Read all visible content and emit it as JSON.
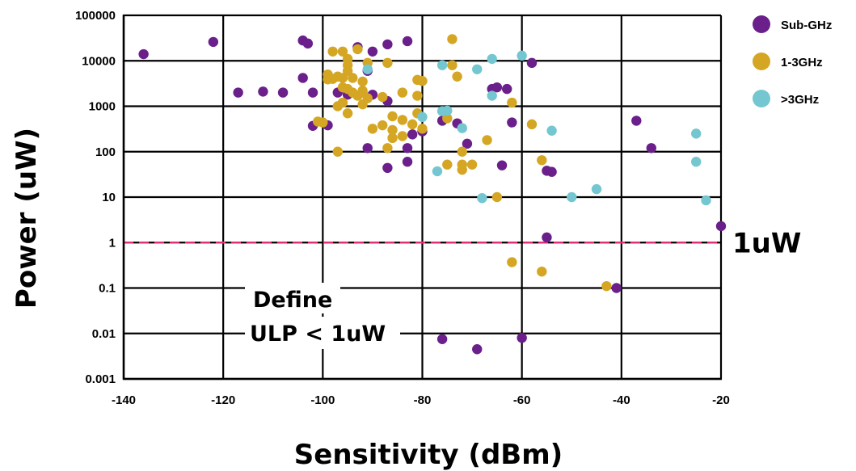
{
  "chart_data": {
    "type": "scatter",
    "title": "",
    "xlabel": "Sensitivity (dBm)",
    "ylabel": "Power (uW)",
    "xlim": [
      -140,
      -20
    ],
    "ylim": [
      0.001,
      100000
    ],
    "yscale": "log",
    "grid": true,
    "legend_position": "top-right",
    "x_ticks": [
      -140,
      -120,
      -100,
      -80,
      -60,
      -40,
      -20
    ],
    "x_tick_labels": [
      "-140",
      "-120",
      "-100",
      "-80",
      "-60",
      "-40",
      "-20"
    ],
    "y_ticks": [
      0.001,
      0.01,
      0.1,
      1,
      10,
      100,
      1000,
      10000,
      100000
    ],
    "y_tick_labels": [
      "0.001",
      "0.01",
      "0.1",
      "1",
      "10",
      "100",
      "1000",
      "10000",
      "100000"
    ],
    "reference_line": {
      "y": 1,
      "label": "1uW",
      "color": "#e0307a"
    },
    "annotation": {
      "lines": [
        "Define",
        "ULP < 1uW"
      ]
    },
    "series": [
      {
        "name": "Sub-GHz",
        "color": "#6a1f8a",
        "points": [
          [
            -136,
            14000
          ],
          [
            -122,
            26000
          ],
          [
            -117,
            2000
          ],
          [
            -112,
            2100
          ],
          [
            -108,
            2000
          ],
          [
            -104,
            28000
          ],
          [
            -103,
            24000
          ],
          [
            -104,
            4200
          ],
          [
            -102,
            2000
          ],
          [
            -102,
            370
          ],
          [
            -99,
            380
          ],
          [
            -97,
            2000
          ],
          [
            -95,
            1800
          ],
          [
            -93,
            20000
          ],
          [
            -91,
            6000
          ],
          [
            -90,
            16000
          ],
          [
            -90,
            1800
          ],
          [
            -91,
            120
          ],
          [
            -87,
            23000
          ],
          [
            -87,
            1300
          ],
          [
            -87,
            44
          ],
          [
            -83,
            27000
          ],
          [
            -83,
            120
          ],
          [
            -83,
            60
          ],
          [
            -82,
            240
          ],
          [
            -80,
            280
          ],
          [
            -76,
            480
          ],
          [
            -73,
            420
          ],
          [
            -71,
            150
          ],
          [
            -66,
            2400
          ],
          [
            -65,
            2600
          ],
          [
            -63,
            2400
          ],
          [
            -62,
            440
          ],
          [
            -64,
            50
          ],
          [
            -58,
            9000
          ],
          [
            -55,
            38
          ],
          [
            -54,
            36
          ],
          [
            -55,
            1.3
          ],
          [
            -37,
            480
          ],
          [
            -34,
            120
          ],
          [
            -20,
            2.3
          ],
          [
            -41,
            0.1
          ],
          [
            -76,
            0.0075
          ],
          [
            -69,
            0.0045
          ],
          [
            -60,
            0.008
          ]
        ]
      },
      {
        "name": "1-3GHz",
        "color": "#d4a623",
        "points": [
          [
            -98,
            4000
          ],
          [
            -99,
            3900
          ],
          [
            -97,
            4500
          ],
          [
            -96,
            4200
          ],
          [
            -95,
            11000
          ],
          [
            -95,
            8000
          ],
          [
            -95,
            6000
          ],
          [
            -96,
            16000
          ],
          [
            -93,
            18000
          ],
          [
            -94,
            4200
          ],
          [
            -92,
            3500
          ],
          [
            -92,
            2000
          ],
          [
            -91,
            1500
          ],
          [
            -96,
            2600
          ],
          [
            -95,
            2400
          ],
          [
            -94,
            2000
          ],
          [
            -93,
            1700
          ],
          [
            -92,
            1100
          ],
          [
            -96,
            1200
          ],
          [
            -97,
            1000
          ],
          [
            -95,
            700
          ],
          [
            -91,
            9000
          ],
          [
            -87,
            9000
          ],
          [
            -92,
            2200
          ],
          [
            -88,
            1600
          ],
          [
            -84,
            2000
          ],
          [
            -81,
            3800
          ],
          [
            -80,
            3600
          ],
          [
            -81,
            1700
          ],
          [
            -86,
            600
          ],
          [
            -84,
            500
          ],
          [
            -82,
            400
          ],
          [
            -90,
            320
          ],
          [
            -88,
            380
          ],
          [
            -86,
            300
          ],
          [
            -86,
            200
          ],
          [
            -87,
            120
          ],
          [
            -84,
            220
          ],
          [
            -97,
            100
          ],
          [
            -101,
            460
          ],
          [
            -100,
            440
          ],
          [
            -99,
            5000
          ],
          [
            -81,
            700
          ],
          [
            -75,
            540
          ],
          [
            -74,
            30000
          ],
          [
            -74,
            8000
          ],
          [
            -73,
            4500
          ],
          [
            -72,
            100
          ],
          [
            -72,
            52
          ],
          [
            -70,
            52
          ],
          [
            -75,
            52
          ],
          [
            -72,
            40
          ],
          [
            -67,
            180
          ],
          [
            -62,
            1200
          ],
          [
            -58,
            400
          ],
          [
            -56,
            65
          ],
          [
            -65,
            10
          ],
          [
            -62,
            0.37
          ],
          [
            -56,
            0.23
          ],
          [
            -43,
            0.11
          ],
          [
            -80,
            320
          ],
          [
            -98,
            16000
          ]
        ]
      },
      {
        "name": ">3GHz",
        "color": "#74c7d0",
        "points": [
          [
            -76,
            8000
          ],
          [
            -66,
            11000
          ],
          [
            -60,
            13000
          ],
          [
            -69,
            6500
          ],
          [
            -91,
            6500
          ],
          [
            -76,
            780
          ],
          [
            -75,
            800
          ],
          [
            -80,
            580
          ],
          [
            -72,
            330
          ],
          [
            -66,
            1700
          ],
          [
            -54,
            290
          ],
          [
            -77,
            37
          ],
          [
            -68,
            9.5
          ],
          [
            -50,
            10
          ],
          [
            -45,
            15
          ],
          [
            -25,
            250
          ],
          [
            -25,
            60
          ],
          [
            -23,
            8.5
          ]
        ]
      }
    ]
  }
}
